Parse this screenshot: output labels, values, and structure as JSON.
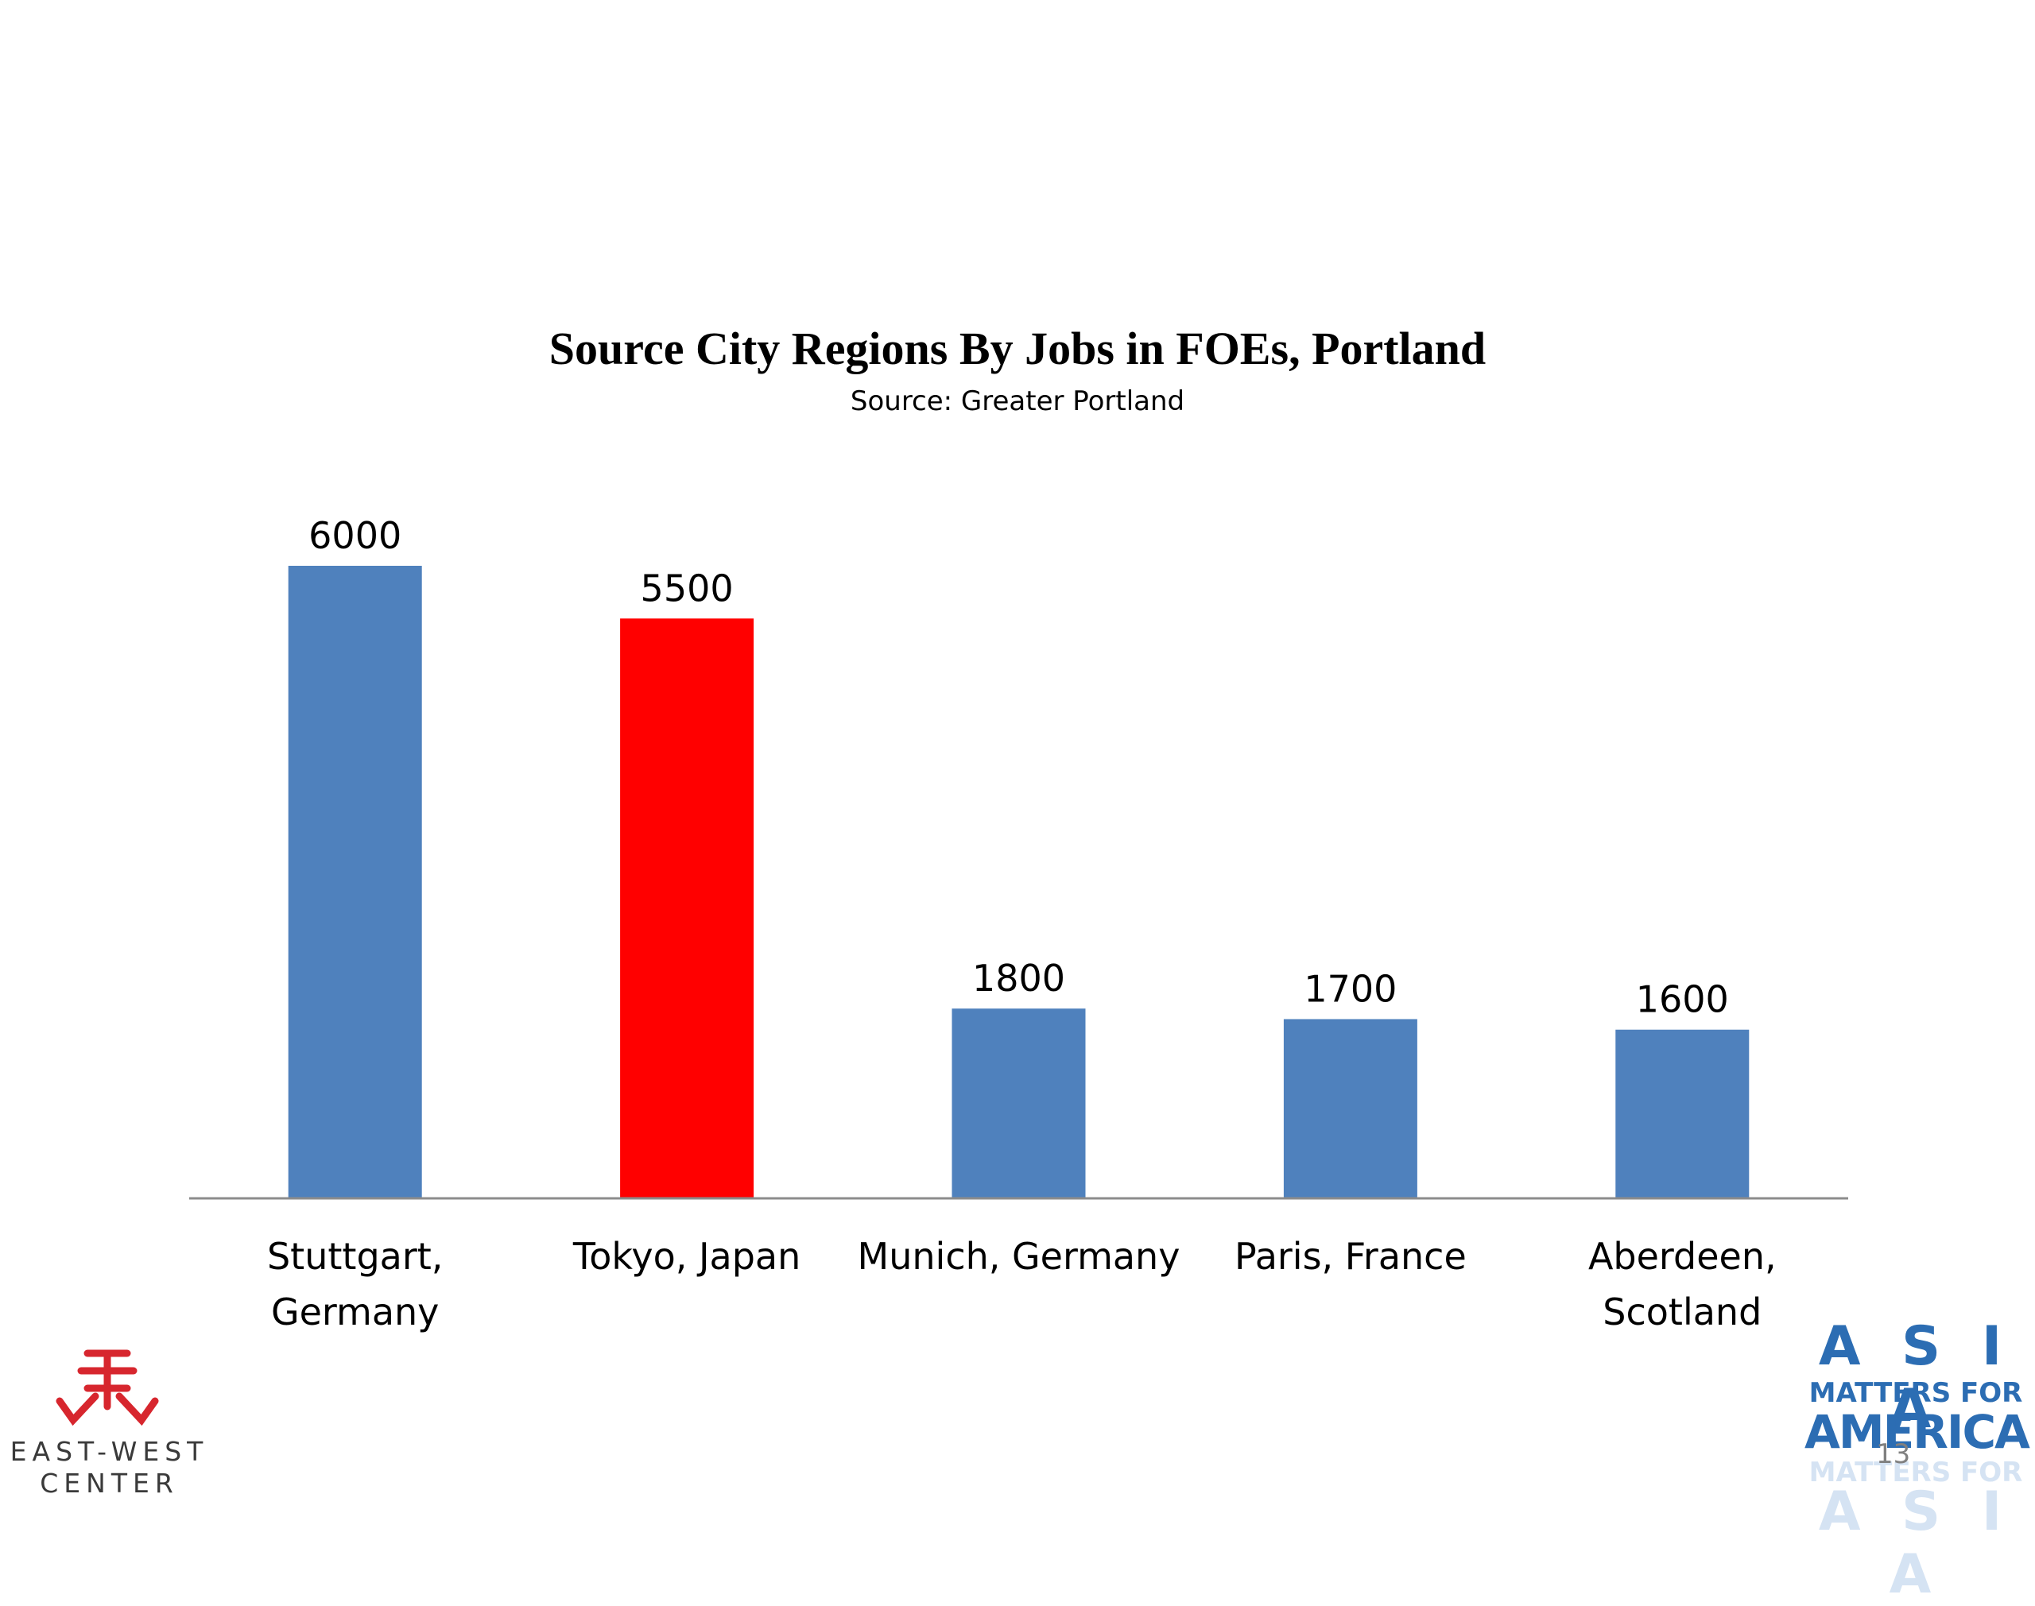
{
  "chart_data": {
    "type": "bar",
    "title": "Source City Regions By Jobs in FOEs, Portland",
    "subtitle": "Source: Greater Portland",
    "categories": [
      [
        "Stuttgart,",
        "Germany"
      ],
      [
        "Tokyo, Japan"
      ],
      [
        "Munich, Germany"
      ],
      [
        "Paris, France"
      ],
      [
        "Aberdeen,",
        "Scotland"
      ]
    ],
    "values": [
      6000,
      5500,
      1800,
      1700,
      1600
    ],
    "data_labels": [
      "6000",
      "5500",
      "1800",
      "1700",
      "1600"
    ],
    "bar_colors": [
      "#4f81bd",
      "#ff0000",
      "#4f81bd",
      "#4f81bd",
      "#4f81bd"
    ],
    "ylim": [
      0,
      6000
    ],
    "grid": false,
    "legend": "none"
  },
  "logos": {
    "east_west_center": {
      "line1": "EAST-WEST",
      "line2": "CENTER"
    },
    "asia_matters": {
      "line1": "A S I A",
      "line2": "MATTERS FOR",
      "line3": "AMERICA",
      "ghost1": "MATTERS FOR",
      "ghost2": "A S I A"
    }
  },
  "page_number": "13"
}
